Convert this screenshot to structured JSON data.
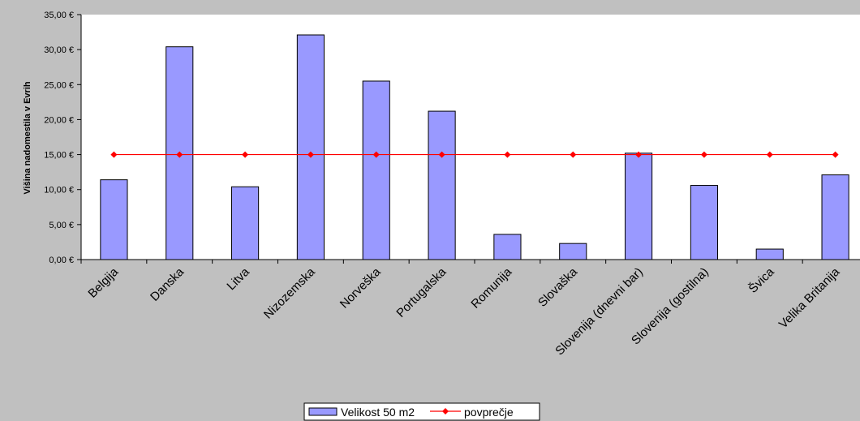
{
  "chart_data": {
    "type": "bar",
    "title": "",
    "xlabel": "",
    "ylabel": "Višina nadomestila v Evrih",
    "ylim": [
      0,
      35
    ],
    "ytick_step": 5,
    "ytick_labels": [
      "0,00 €",
      "5,00 €",
      "10,00 €",
      "15,00 €",
      "20,00 €",
      "25,00 €",
      "30,00 €",
      "35,00 €"
    ],
    "categories": [
      "Belgija",
      "Danska",
      "Litva",
      "Nizozemska",
      "Norveška",
      "Portugalska",
      "Romunija",
      "Slovaška",
      "Slovenija (dnevni bar)",
      "Slovenija (gostilna)",
      "Švica",
      "Velika Britanija"
    ],
    "series": [
      {
        "name": "Velikost 50 m2",
        "type": "bar",
        "color": "#9999ff",
        "values": [
          11.4,
          30.4,
          10.4,
          32.1,
          25.5,
          21.2,
          3.6,
          2.3,
          15.2,
          10.6,
          1.5,
          12.1
        ]
      },
      {
        "name": "povprečje",
        "type": "line",
        "color": "#ff0000",
        "values": [
          15.0,
          15.0,
          15.0,
          15.0,
          15.0,
          15.0,
          15.0,
          15.0,
          15.0,
          15.0,
          15.0,
          15.0
        ]
      }
    ],
    "legend_position": "bottom-center",
    "grid": false
  }
}
